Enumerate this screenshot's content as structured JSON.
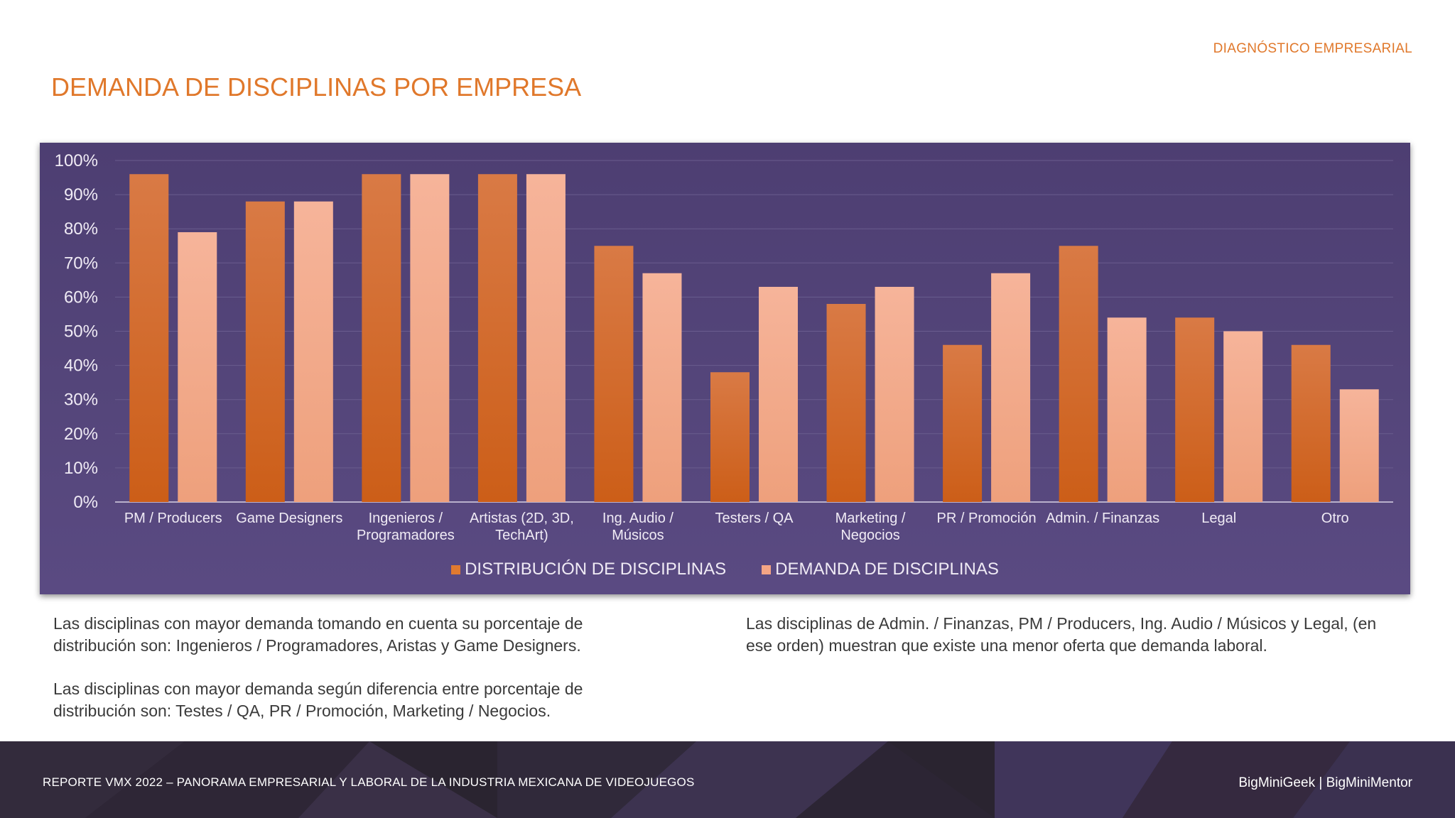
{
  "header": {
    "section_tag": "DIAGNÓSTICO EMPRESARIAL",
    "title": "DEMANDA DE DISCIPLINAS POR EMPRESA"
  },
  "chart_data": {
    "type": "bar",
    "categories": [
      [
        "PM / Producers"
      ],
      [
        "Game Designers"
      ],
      [
        "Ingenieros /",
        "Programadores"
      ],
      [
        "Artistas (2D, 3D,",
        "TechArt)"
      ],
      [
        "Ing. Audio /",
        "Músicos"
      ],
      [
        "Testers / QA"
      ],
      [
        "Marketing /",
        "Negocios"
      ],
      [
        "PR / Promoción"
      ],
      [
        "Admin. / Finanzas"
      ],
      [
        "Legal"
      ],
      [
        "Otro"
      ]
    ],
    "series": [
      {
        "name": "DISTRIBUCIÓN DE DISCIPLINAS",
        "color": "#e07a30",
        "values": [
          96,
          88,
          96,
          96,
          75,
          38,
          58,
          46,
          75,
          54,
          46
        ]
      },
      {
        "name": "DEMANDA DE DISCIPLINAS",
        "color": "#f4a585",
        "values": [
          79,
          88,
          96,
          96,
          67,
          63,
          63,
          67,
          54,
          50,
          33
        ]
      }
    ],
    "ylim": [
      0,
      100
    ],
    "yticks": [
      "0%",
      "10%",
      "20%",
      "30%",
      "40%",
      "50%",
      "60%",
      "70%",
      "80%",
      "90%",
      "100%"
    ],
    "grid": true,
    "legend": "bottom-center"
  },
  "text": {
    "left_p1": "Las disciplinas con mayor demanda tomando en cuenta su porcentaje de distribución son: Ingenieros / Programadores, Aristas y Game Designers.",
    "left_p2": "Las disciplinas con mayor demanda según diferencia entre porcentaje de distribución son: Testes / QA, PR / Promoción, Marketing / Negocios.",
    "right_p1": "Las disciplinas de Admin. / Finanzas, PM / Producers, Ing. Audio / Músicos y Legal, (en ese orden) muestran que existe una menor oferta que demanda laboral."
  },
  "footer": {
    "report": "REPORTE VMX 2022 – PANORAMA EMPRESARIAL Y LABORAL DE LA INDUSTRIA MEXICANA DE VIDEOJUEGOS",
    "brand": "BigMiniGeek  |  BigMiniMentor"
  }
}
